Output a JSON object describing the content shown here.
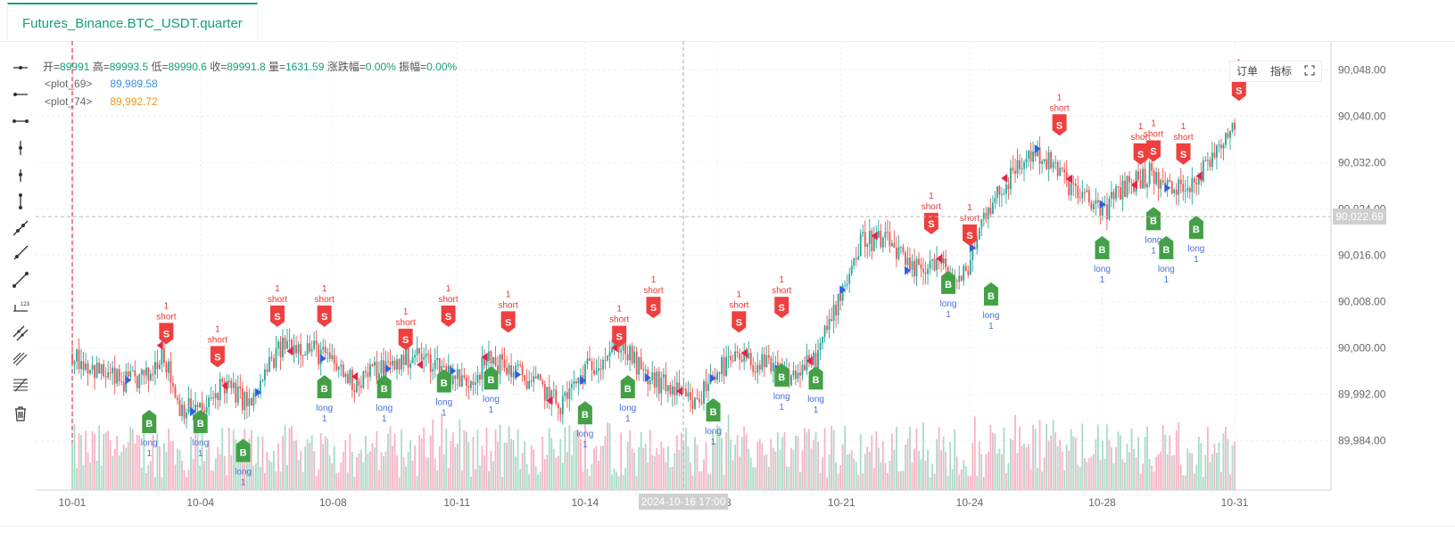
{
  "tab": {
    "label": "Futures_Binance.BTC_USDT.quarter"
  },
  "legend": {
    "ohlc": {
      "open_label": "开=",
      "open": "89991",
      "high_label": "高=",
      "high": "89993.5",
      "low_label": "低=",
      "low": "89990.6",
      "close_label": "收=",
      "close": "89991.8",
      "vol_label": "量=",
      "vol": "1631.59",
      "chg_label": "涨跌幅=",
      "chg": "0.00%",
      "amp_label": "振幅=",
      "amp": "0.00%"
    },
    "plots": [
      {
        "name": "<plot_69>",
        "value": "89,989.58",
        "color": "#3f8fe0"
      },
      {
        "name": "<plot_74>",
        "value": "89,992.72",
        "color": "#f2961e"
      }
    ]
  },
  "top_buttons": {
    "order": "订单",
    "indicator": "指标"
  },
  "toolbar_icons": [
    "horizontal-line-icon",
    "horizontal-ray-icon",
    "horizontal-segment-icon",
    "vertical-line-icon",
    "vertical-ray-icon",
    "vertical-segment-icon",
    "trend-line-icon",
    "ray-icon",
    "segment-icon",
    "price-range-icon",
    "parallel-channel-icon",
    "pitchfork-icon",
    "fib-retracement-icon",
    "trash-icon"
  ],
  "colors": {
    "up": "#26a69a",
    "down": "#ef5350",
    "ma_fast": "#3f8fe0",
    "ma_slow": "#f2961e",
    "buy": "#43a047",
    "sell": "#ef3f3f",
    "vol_up": "#a8dcc6",
    "vol_down": "#f6b4c4"
  },
  "chart_data": {
    "type": "candlestick",
    "y_ticks": [
      "90,048.00",
      "90,040.00",
      "90,032.00",
      "90,024.00",
      "90,016.00",
      "90,008.00",
      "90,000.00",
      "89,992.00",
      "89,984.00"
    ],
    "y_tick_values": [
      90048,
      90040,
      90032,
      90024,
      90016,
      90008,
      90000,
      89992,
      89984
    ],
    "ylim": [
      89975.5,
      90053
    ],
    "x_ticks": [
      "10-01",
      "10-04",
      "10-08",
      "10-11",
      "10-14",
      "10-18",
      "10-21",
      "10-24",
      "10-28",
      "10-31"
    ],
    "x_tick_index": [
      0,
      3,
      6.1,
      9,
      12,
      15.1,
      18,
      21,
      24.1,
      27.2
    ],
    "current_price_label": "90,022.69",
    "current_price": 90022.69,
    "crosshair_label": "2024-10-16 17:00",
    "crosshair_index": 14.3,
    "marker_price_label": "1",
    "trend_points": [
      [
        0,
        89999
      ],
      [
        0.6,
        89996
      ],
      [
        1.2,
        89994
      ],
      [
        1.8,
        89995
      ],
      [
        2.1,
        90000
      ],
      [
        2.5,
        89990
      ],
      [
        3.1,
        89989
      ],
      [
        3.5,
        89994
      ],
      [
        4.2,
        89990
      ],
      [
        4.6,
        89997
      ],
      [
        5.0,
        90001
      ],
      [
        5.6,
        90000
      ],
      [
        6.0,
        89998
      ],
      [
        6.6,
        89994
      ],
      [
        7.0,
        89996
      ],
      [
        7.5,
        89997
      ],
      [
        8.0,
        89999
      ],
      [
        8.6,
        89997
      ],
      [
        9.2,
        89994
      ],
      [
        9.8,
        89998
      ],
      [
        10.6,
        89995
      ],
      [
        11.0,
        89993
      ],
      [
        11.4,
        89990
      ],
      [
        12.0,
        89996
      ],
      [
        12.8,
        90001
      ],
      [
        13.4,
        89995
      ],
      [
        14.0,
        89993
      ],
      [
        14.6,
        89990
      ],
      [
        15.0,
        89996
      ],
      [
        15.6,
        89998
      ],
      [
        16.2,
        89997
      ],
      [
        16.8,
        89995
      ],
      [
        17.4,
        89998
      ],
      [
        18.0,
        90010
      ],
      [
        18.5,
        90019
      ],
      [
        19.2,
        90018
      ],
      [
        19.6,
        90013
      ],
      [
        20.2,
        90015
      ],
      [
        20.8,
        90011
      ],
      [
        21.4,
        90024
      ],
      [
        22.0,
        90030
      ],
      [
        22.5,
        90034
      ],
      [
        23.0,
        90031
      ],
      [
        23.6,
        90026
      ],
      [
        24.2,
        90024
      ],
      [
        24.6,
        90028
      ],
      [
        25.2,
        90030
      ],
      [
        25.8,
        90027
      ],
      [
        26.4,
        90030
      ],
      [
        26.9,
        90036
      ],
      [
        27.2,
        90039
      ]
    ],
    "buy_signals": [
      {
        "i": 1.8,
        "price": 89987.5,
        "label": "long",
        "qty": "1"
      },
      {
        "i": 3.0,
        "price": 89987.5,
        "label": "long",
        "qty": "1"
      },
      {
        "i": 4.0,
        "price": 89982.5,
        "label": "long",
        "qty": "1"
      },
      {
        "i": 5.9,
        "price": 89993.5,
        "label": "long",
        "qty": "1"
      },
      {
        "i": 7.3,
        "price": 89993.5,
        "label": "long",
        "qty": "1"
      },
      {
        "i": 8.7,
        "price": 89994.5,
        "label": "long",
        "qty": "1"
      },
      {
        "i": 9.8,
        "price": 89995.0,
        "label": "long",
        "qty": "1"
      },
      {
        "i": 12.0,
        "price": 89989.0,
        "label": "long",
        "qty": "1"
      },
      {
        "i": 13.0,
        "price": 89993.5,
        "label": "long",
        "qty": "1"
      },
      {
        "i": 15.0,
        "price": 89989.5,
        "label": "long",
        "qty": "1"
      },
      {
        "i": 16.6,
        "price": 89995.5,
        "label": "long",
        "qty": "1"
      },
      {
        "i": 17.4,
        "price": 89995.0,
        "label": "long",
        "qty": "1"
      },
      {
        "i": 20.5,
        "price": 90011.5,
        "label": "long",
        "qty": "1"
      },
      {
        "i": 21.5,
        "price": 90009.5,
        "label": "long",
        "qty": "1"
      },
      {
        "i": 24.1,
        "price": 90017.5,
        "label": "long",
        "qty": "1"
      },
      {
        "i": 25.3,
        "price": 90022.5,
        "label": "long",
        "qty": "1"
      },
      {
        "i": 25.6,
        "price": 90017.5,
        "label": "long",
        "qty": "1"
      },
      {
        "i": 26.3,
        "price": 90021.0,
        "label": "long",
        "qty": "1"
      }
    ],
    "sell_signals": [
      {
        "i": 2.2,
        "price": 90002.5,
        "label": "short",
        "qty": "1"
      },
      {
        "i": 3.4,
        "price": 89998.5,
        "label": "short",
        "qty": "1"
      },
      {
        "i": 4.8,
        "price": 90005.5,
        "label": "short",
        "qty": "1"
      },
      {
        "i": 5.9,
        "price": 90005.5,
        "label": "short",
        "qty": "1"
      },
      {
        "i": 7.8,
        "price": 90001.5,
        "label": "short",
        "qty": "1"
      },
      {
        "i": 8.8,
        "price": 90005.5,
        "label": "short",
        "qty": "1"
      },
      {
        "i": 10.2,
        "price": 90004.5,
        "label": "short",
        "qty": "1"
      },
      {
        "i": 12.8,
        "price": 90002.0,
        "label": "short",
        "qty": "1"
      },
      {
        "i": 13.6,
        "price": 90007.0,
        "label": "short",
        "qty": "1"
      },
      {
        "i": 15.6,
        "price": 90004.5,
        "label": "short",
        "qty": "1"
      },
      {
        "i": 16.6,
        "price": 90007.0,
        "label": "short",
        "qty": "1"
      },
      {
        "i": 20.1,
        "price": 90021.5,
        "label": "short",
        "qty": "1"
      },
      {
        "i": 21.0,
        "price": 90019.5,
        "label": "short",
        "qty": "1"
      },
      {
        "i": 23.1,
        "price": 90038.5,
        "label": "short",
        "qty": "1"
      },
      {
        "i": 25.0,
        "price": 90033.5,
        "label": "short",
        "qty": "1"
      },
      {
        "i": 25.3,
        "price": 90034.0,
        "label": "short",
        "qty": "1"
      },
      {
        "i": 26.0,
        "price": 90033.5,
        "label": "short",
        "qty": "1"
      },
      {
        "i": 27.3,
        "price": 90044.5,
        "label": "short",
        "qty": "1"
      }
    ]
  }
}
